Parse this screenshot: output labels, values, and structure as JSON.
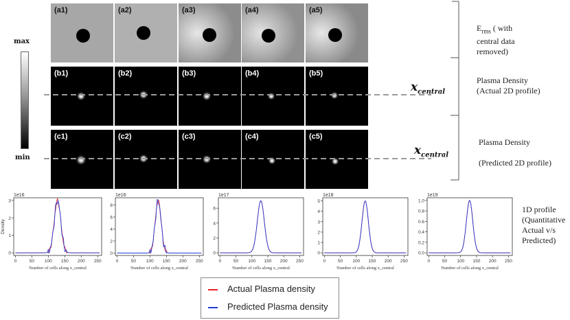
{
  "colorbar": {
    "max_label": "max",
    "min_label": "min"
  },
  "tiles": {
    "row_a": [
      "(a1)",
      "(a2)",
      "(a3)",
      "(a4)",
      "(a5)"
    ],
    "row_b": [
      "(b1)",
      "(b2)",
      "(b3)",
      "(b4)",
      "(b5)"
    ],
    "row_c": [
      "(c1)",
      "(c2)",
      "(c3)",
      "(c4)",
      "(c5)"
    ]
  },
  "xcentral": {
    "symbol": "x",
    "subscript": "central"
  },
  "descriptions": {
    "erms": {
      "main": "E",
      "sub": "rms",
      "rest1": "( with",
      "rest2": "central data",
      "rest3": "removed)"
    },
    "actual": {
      "line1": "Plasma Density",
      "line2": "(Actual 2D profile)"
    },
    "predicted": {
      "line1": "Plasma  Density",
      "line2": "(Predicted 2D profile)"
    },
    "profile1d": {
      "line1": "1D profile",
      "line2": "(Quantitative",
      "line3": "Actual v/s",
      "line4": "Predicted)"
    }
  },
  "legend": {
    "actual_label": "Actual Plasma density",
    "predicted_label": "Predicted  Plasma density",
    "actual_color": "#e8202a",
    "predicted_color": "#1f3bd6"
  },
  "chart_data": [
    {
      "type": "line",
      "scale_label": "1e16",
      "ylabel": "Density",
      "xlabel": "Number of cells along x_central",
      "xticks": [
        0,
        50,
        100,
        150,
        200,
        250
      ],
      "yticks": [
        0,
        1,
        2,
        3
      ],
      "xlim": [
        -5,
        262
      ],
      "ylim": [
        -0.15,
        3.15
      ],
      "peak": 3.0,
      "center": 128,
      "width": 10,
      "noise": true
    },
    {
      "type": "line",
      "scale_label": "1e16",
      "ylabel": "",
      "xlabel": "Number of cells along x_central",
      "xticks": [
        0,
        50,
        100,
        150,
        200,
        250
      ],
      "yticks": [
        0,
        2,
        4,
        6,
        8
      ],
      "xlim": [
        -5,
        262
      ],
      "ylim": [
        -0.4,
        9.2
      ],
      "peak": 8.7,
      "center": 125,
      "width": 9,
      "noise": true
    },
    {
      "type": "line",
      "scale_label": "1e17",
      "ylabel": "",
      "xlabel": "Number of cells along x_central",
      "xticks": [
        0,
        50,
        100,
        150,
        200,
        250
      ],
      "yticks": [
        0,
        2,
        4,
        6
      ],
      "xlim": [
        -5,
        262
      ],
      "ylim": [
        -0.35,
        7.4
      ],
      "peak": 7.0,
      "center": 128,
      "width": 11,
      "noise": false
    },
    {
      "type": "line",
      "scale_label": "1e18",
      "ylabel": "",
      "xlabel": "Number of cells along x_central",
      "xticks": [
        0,
        50,
        100,
        150,
        200,
        250
      ],
      "yticks": [
        0,
        1,
        2,
        3,
        4,
        5
      ],
      "xlim": [
        -5,
        262
      ],
      "ylim": [
        -0.25,
        5.3
      ],
      "peak": 5.0,
      "center": 128,
      "width": 10,
      "noise": false
    },
    {
      "type": "line",
      "scale_label": "1e19",
      "ylabel": "",
      "xlabel": "Number of cells along x_central",
      "xticks": [
        0,
        50,
        100,
        150,
        200,
        250
      ],
      "yticks": [
        0.0,
        0.2,
        0.4,
        0.6,
        0.8,
        1.0
      ],
      "xlim": [
        -5,
        262
      ],
      "ylim": [
        -0.05,
        1.05
      ],
      "peak": 1.0,
      "center": 128,
      "width": 10,
      "noise": false
    }
  ]
}
